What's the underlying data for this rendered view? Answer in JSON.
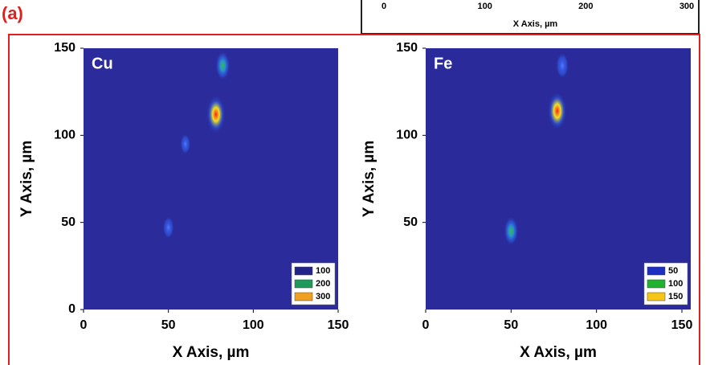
{
  "panel_label": "(a)",
  "chart_data": [
    {
      "type": "axis-strip",
      "xlabel": "X Axis, µm",
      "xlim": [
        0,
        300
      ],
      "xticks": [
        0,
        100,
        200,
        300
      ]
    },
    {
      "type": "heatmap",
      "element": "Cu",
      "xlabel": "X Axis, µm",
      "ylabel": "Y Axis, µm",
      "xlim": [
        0,
        150
      ],
      "ylim": [
        0,
        150
      ],
      "xticks": [
        0,
        50,
        100,
        150
      ],
      "yticks": [
        0,
        50,
        100,
        150
      ],
      "background": "#2c2b9c",
      "legend": [
        {
          "value": 100,
          "color": "#23238a"
        },
        {
          "value": 200,
          "color": "#1f9a5a"
        },
        {
          "value": 300,
          "color": "#f0a020"
        }
      ],
      "spots": {
        "x": [
          78,
          82,
          50,
          60
        ],
        "y": [
          112,
          140,
          47,
          95
        ],
        "values": [
          300,
          200,
          120,
          100
        ]
      }
    },
    {
      "type": "heatmap",
      "element": "Fe",
      "xlabel": "X Axis, µm",
      "ylabel": "Y Axis, µm",
      "xlim": [
        0,
        150
      ],
      "ylim": [
        0,
        150
      ],
      "xticks": [
        0,
        50,
        100,
        150
      ],
      "yticks": [
        50,
        100,
        150
      ],
      "background": "#2a2a9a",
      "legend": [
        {
          "value": 50,
          "color": "#1c2fc0"
        },
        {
          "value": 100,
          "color": "#22b030"
        },
        {
          "value": 150,
          "color": "#f5c518"
        }
      ],
      "spots": {
        "x": [
          77,
          80,
          50
        ],
        "y": [
          114,
          140,
          45
        ],
        "values": [
          150,
          80,
          100
        ]
      }
    }
  ]
}
